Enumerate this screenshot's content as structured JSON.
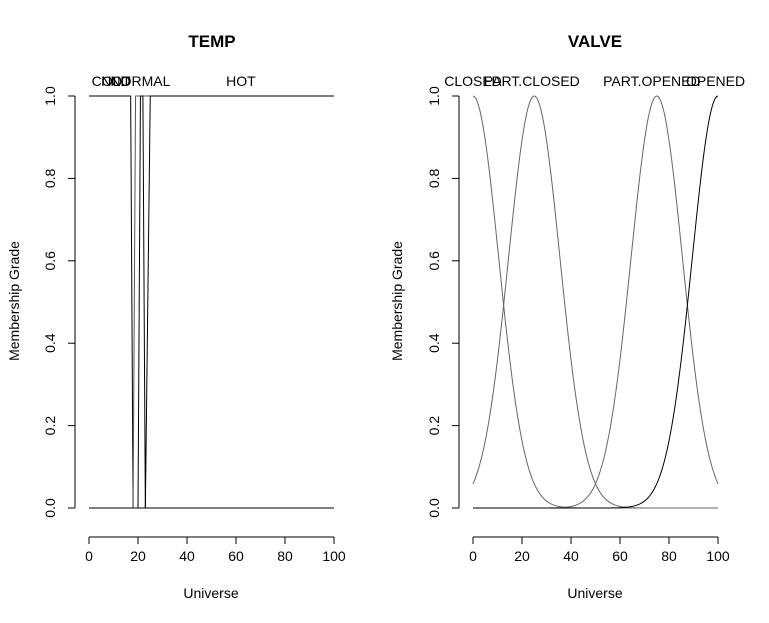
{
  "chart_data": [
    {
      "type": "line",
      "title": "TEMP",
      "xlabel": "Universe",
      "ylabel": "Membership Grade",
      "xlim": [
        0,
        100
      ],
      "ylim": [
        0,
        1
      ],
      "x_ticks": [
        0,
        20,
        40,
        60,
        80,
        100
      ],
      "y_ticks": [
        0.0,
        0.2,
        0.4,
        0.6,
        0.8,
        1.0
      ],
      "x_tick_labels": [
        "0",
        "20",
        "40",
        "60",
        "80",
        "100"
      ],
      "y_tick_labels": [
        "0.0",
        "0.2",
        "0.4",
        "0.6",
        "0.8",
        "1.0"
      ],
      "series": [
        {
          "name": "COLD",
          "color": "#000000",
          "x": [
            0,
            17,
            18,
            100
          ],
          "y": [
            1,
            1,
            0,
            0
          ],
          "label_x": 9
        },
        {
          "name": "NOT",
          "color": "#555555",
          "x": [
            0,
            18,
            19,
            100
          ],
          "y": [
            0,
            0,
            1,
            1
          ],
          "label_x": 11
        },
        {
          "name": "NORMAL",
          "color": "#000000",
          "x": [
            0,
            20,
            21,
            22,
            23,
            100
          ],
          "y": [
            0,
            0,
            1,
            1,
            0,
            0
          ],
          "label_x": 21
        },
        {
          "name": "HOT",
          "color": "#000000",
          "x": [
            0,
            23,
            25,
            100
          ],
          "y": [
            0,
            0,
            1,
            1
          ],
          "label_x": 62
        }
      ]
    },
    {
      "type": "line",
      "title": "VALVE",
      "xlabel": "Universe",
      "ylabel": "Membership Grade",
      "xlim": [
        0,
        100
      ],
      "ylim": [
        0,
        1
      ],
      "x_ticks": [
        0,
        20,
        40,
        60,
        80,
        100
      ],
      "y_ticks": [
        0.0,
        0.2,
        0.4,
        0.6,
        0.8,
        1.0
      ],
      "x_tick_labels": [
        "0",
        "20",
        "40",
        "60",
        "80",
        "100"
      ],
      "y_tick_labels": [
        "0.0",
        "0.2",
        "0.4",
        "0.6",
        "0.8",
        "1.0"
      ],
      "series": [
        {
          "name": "CLOSED",
          "color": "#666666",
          "center": 0,
          "sigma": 10.5,
          "label_x": 0
        },
        {
          "name": "PART.CLOSED",
          "color": "#666666",
          "center": 25,
          "sigma": 10.5,
          "label_x": 24
        },
        {
          "name": "PART.OPENED",
          "color": "#666666",
          "center": 75,
          "sigma": 10.5,
          "label_x": 73
        },
        {
          "name": "OPENED",
          "color": "#000000",
          "center": 100,
          "sigma": 10.5,
          "label_x": 99
        }
      ]
    }
  ]
}
